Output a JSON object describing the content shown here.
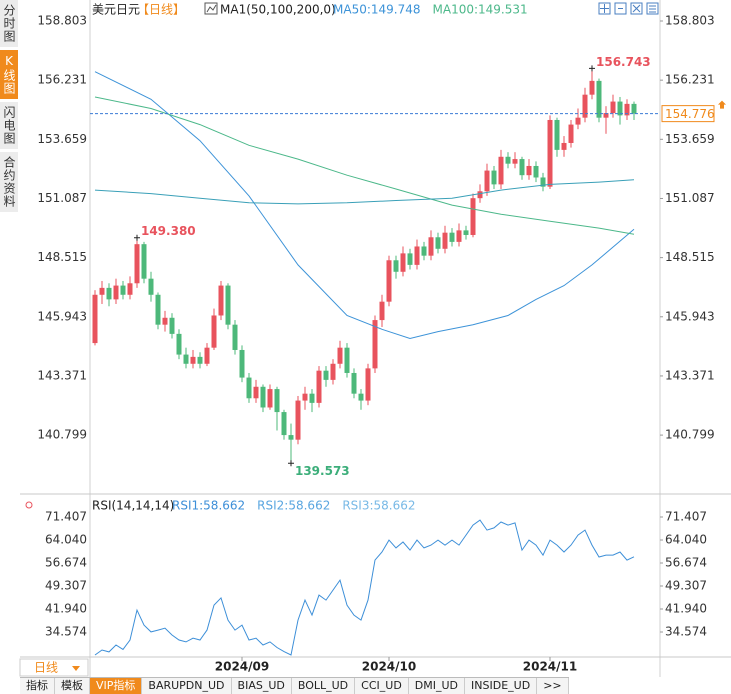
{
  "side_tabs": [
    "分时图",
    "K线图",
    "闪电图",
    "合约资料"
  ],
  "active_side_tab": 1,
  "period_selector": "日线",
  "tabs": [
    "指标",
    "模板",
    "VIP指标",
    "BARUPDN_UD",
    "BIAS_UD",
    "BOLL_UD",
    "CCI_UD",
    "DMI_UD",
    "INSIDE_UD",
    ">>"
  ],
  "active_tab": 2,
  "chart_data": [
    {
      "type": "candlestick",
      "title": "美元日元",
      "period": "【日线】",
      "indicator": "MA1(50,100,200,0)",
      "up_color": "#e8535d",
      "down_color": "#4db87a",
      "xlim": [
        -0.714,
        80.714
      ],
      "ylim": [
        138.325,
        159.499
      ],
      "yticks": [
        158.803,
        156.231,
        153.659,
        151.087,
        148.515,
        145.943,
        143.371,
        140.799
      ],
      "xticks": [
        {
          "value": 21,
          "label": "2024/09"
        },
        {
          "value": 42,
          "label": "2024/10"
        },
        {
          "value": 65,
          "label": "2024/11"
        }
      ],
      "candles": [
        [
          144.8,
          147.1,
          144.7,
          146.9
        ],
        [
          146.9,
          147.5,
          146.5,
          147.2
        ],
        [
          147.2,
          147.4,
          146.4,
          146.7
        ],
        [
          146.7,
          147.6,
          146.5,
          147.3
        ],
        [
          147.3,
          147.5,
          146.7,
          146.9
        ],
        [
          146.9,
          147.7,
          146.7,
          147.4
        ],
        [
          147.4,
          149.38,
          147.2,
          149.1
        ],
        [
          149.1,
          149.2,
          147.4,
          147.6
        ],
        [
          147.6,
          147.9,
          146.6,
          146.9
        ],
        [
          146.9,
          147.0,
          145.4,
          145.6
        ],
        [
          145.6,
          146.2,
          145.3,
          145.9
        ],
        [
          145.9,
          146.1,
          145.0,
          145.2
        ],
        [
          145.2,
          145.4,
          144.1,
          144.3
        ],
        [
          144.3,
          144.6,
          143.7,
          143.9
        ],
        [
          143.9,
          144.5,
          143.7,
          144.2
        ],
        [
          144.2,
          144.4,
          143.7,
          143.9
        ],
        [
          143.9,
          144.8,
          143.8,
          144.6
        ],
        [
          144.6,
          146.3,
          144.5,
          146.0
        ],
        [
          146.0,
          147.5,
          145.8,
          147.3
        ],
        [
          147.3,
          147.4,
          145.4,
          145.6
        ],
        [
          145.6,
          145.8,
          144.3,
          144.5
        ],
        [
          144.5,
          144.7,
          143.1,
          143.3
        ],
        [
          143.3,
          143.5,
          142.2,
          142.4
        ],
        [
          142.4,
          143.2,
          142.2,
          142.9
        ],
        [
          142.9,
          143.0,
          141.8,
          142.0
        ],
        [
          142.0,
          143.0,
          141.9,
          142.8
        ],
        [
          142.8,
          142.9,
          141.0,
          141.8
        ],
        [
          141.8,
          141.9,
          140.6,
          140.8
        ],
        [
          140.8,
          141.3,
          139.573,
          140.6
        ],
        [
          140.6,
          142.5,
          140.4,
          142.3
        ],
        [
          142.3,
          142.9,
          141.9,
          142.6
        ],
        [
          142.6,
          142.8,
          141.8,
          142.2
        ],
        [
          142.2,
          143.8,
          142.0,
          143.6
        ],
        [
          143.6,
          143.8,
          142.9,
          143.2
        ],
        [
          143.2,
          144.1,
          143.0,
          143.9
        ],
        [
          143.9,
          144.9,
          143.7,
          144.6
        ],
        [
          144.6,
          144.8,
          143.3,
          143.5
        ],
        [
          143.5,
          143.7,
          142.4,
          142.6
        ],
        [
          142.6,
          142.8,
          141.9,
          142.3
        ],
        [
          142.3,
          143.9,
          142.1,
          143.7
        ],
        [
          143.7,
          146.0,
          143.5,
          145.8
        ],
        [
          145.8,
          146.9,
          145.5,
          146.6
        ],
        [
          146.6,
          148.6,
          146.4,
          148.4
        ],
        [
          148.4,
          148.6,
          147.6,
          147.9
        ],
        [
          147.9,
          149.0,
          147.7,
          148.7
        ],
        [
          148.7,
          148.9,
          148.0,
          148.2
        ],
        [
          148.2,
          149.3,
          148.0,
          149.0
        ],
        [
          149.0,
          149.2,
          148.4,
          148.6
        ],
        [
          148.6,
          149.7,
          148.4,
          149.4
        ],
        [
          149.4,
          149.6,
          148.7,
          148.9
        ],
        [
          148.9,
          149.9,
          148.7,
          149.6
        ],
        [
          149.6,
          149.8,
          149.0,
          149.2
        ],
        [
          149.2,
          150.0,
          149.0,
          149.7
        ],
        [
          149.7,
          149.9,
          149.3,
          149.5
        ],
        [
          149.5,
          151.3,
          149.4,
          151.1
        ],
        [
          151.1,
          151.7,
          150.9,
          151.4
        ],
        [
          151.4,
          152.6,
          151.2,
          152.3
        ],
        [
          152.3,
          152.5,
          151.5,
          151.7
        ],
        [
          151.7,
          153.2,
          151.5,
          152.9
        ],
        [
          152.9,
          153.1,
          152.4,
          152.6
        ],
        [
          152.6,
          153.1,
          152.4,
          152.8
        ],
        [
          152.8,
          152.9,
          151.9,
          152.1
        ],
        [
          152.1,
          152.8,
          151.9,
          152.5
        ],
        [
          152.5,
          152.7,
          151.8,
          152.0
        ],
        [
          152.0,
          152.2,
          151.4,
          151.6
        ],
        [
          151.6,
          154.7,
          151.5,
          154.5
        ],
        [
          154.5,
          154.6,
          152.9,
          153.2
        ],
        [
          153.2,
          153.8,
          152.9,
          153.5
        ],
        [
          153.5,
          154.5,
          153.3,
          154.3
        ],
        [
          154.3,
          155.0,
          154.1,
          154.6
        ],
        [
          154.6,
          155.9,
          154.4,
          155.6
        ],
        [
          155.6,
          156.743,
          155.4,
          156.2
        ],
        [
          156.2,
          156.3,
          154.4,
          154.6
        ],
        [
          154.6,
          155.1,
          153.9,
          154.8
        ],
        [
          154.8,
          155.6,
          154.6,
          155.3
        ],
        [
          155.3,
          155.5,
          154.3,
          154.7
        ],
        [
          154.7,
          155.4,
          154.5,
          155.2
        ],
        [
          155.2,
          155.3,
          154.5,
          154.776
        ]
      ],
      "series": [
        {
          "name": "MA50:149.748",
          "color": "#3d93d8",
          "x": [
            0,
            8,
            15,
            22,
            29,
            36,
            41,
            45,
            49,
            54,
            59,
            63,
            67,
            71,
            77
          ],
          "values": [
            156.6,
            155.4,
            153.6,
            151.2,
            148.2,
            146.0,
            145.4,
            145.0,
            145.3,
            145.6,
            146.0,
            146.7,
            147.3,
            148.2,
            149.748
          ]
        },
        {
          "name": "MA100:149.531",
          "color": "#4cb88a",
          "x": [
            0,
            8,
            15,
            22,
            29,
            36,
            43,
            51,
            58,
            65,
            72,
            77
          ],
          "values": [
            155.5,
            155.0,
            154.3,
            153.4,
            152.8,
            152.1,
            151.5,
            150.8,
            150.4,
            150.1,
            149.8,
            149.531
          ]
        },
        {
          "color": "#3aa0b8",
          "x": [
            0,
            8,
            15,
            22,
            29,
            36,
            43,
            51,
            58,
            65,
            72,
            77
          ],
          "values": [
            151.45,
            151.3,
            151.1,
            150.9,
            150.85,
            150.9,
            151.0,
            151.1,
            151.45,
            151.7,
            151.8,
            151.9
          ]
        }
      ],
      "annotations": [
        {
          "index": 6,
          "value": 149.38,
          "label": "149.380",
          "color": "#e8535d"
        },
        {
          "index": 28,
          "value": 139.573,
          "label": "139.573",
          "color": "#3cae7a"
        },
        {
          "index": 71,
          "value": 156.743,
          "label": "156.743",
          "color": "#e8535d"
        }
      ],
      "last_price": 154.776,
      "last_price_color": "#f08a1c"
    },
    {
      "type": "line",
      "title": "RSI(14,14,14)",
      "xlim": [
        -0.714,
        80.714
      ],
      "ylim": [
        26.57,
        77.49
      ],
      "yticks": [
        71.407,
        {
          "value": 64.04,
          "label": "64.040"
        },
        56.674,
        49.307,
        {
          "value": 41.94,
          "label": "41.940"
        },
        34.574
      ],
      "series": [
        {
          "name": "RSI1:58.662",
          "color": "#3d8fd8",
          "values": [
            27.2,
            28.8,
            28.2,
            30.4,
            29.0,
            32.0,
            41.6,
            36.8,
            34.6,
            35.2,
            35.8,
            33.6,
            32.0,
            31.4,
            32.6,
            32.0,
            35.2,
            43.2,
            45.5,
            38.4,
            35.2,
            36.8,
            32.0,
            32.6,
            30.4,
            31.4,
            29.6,
            28.3,
            27.2,
            38.4,
            44.8,
            40.0,
            46.4,
            44.8,
            48.0,
            51.2,
            43.2,
            40.0,
            38.4,
            44.8,
            57.6,
            60.2,
            64.0,
            61.5,
            63.4,
            60.8,
            64.0,
            61.5,
            62.4,
            64.0,
            62.4,
            64.0,
            62.4,
            65.6,
            68.8,
            70.4,
            67.2,
            67.9,
            69.8,
            68.8,
            69.5,
            60.8,
            64.0,
            62.4,
            59.2,
            64.0,
            62.4,
            60.2,
            62.4,
            65.6,
            67.2,
            62.4,
            58.6,
            59.2,
            59.2,
            60.2,
            57.6,
            58.662
          ]
        }
      ],
      "legend_extra": [
        {
          "name": "RSI2:58.662",
          "color": "#5aa6e0"
        },
        {
          "name": "RSI3:58.662",
          "color": "#78b9e6"
        }
      ]
    }
  ]
}
